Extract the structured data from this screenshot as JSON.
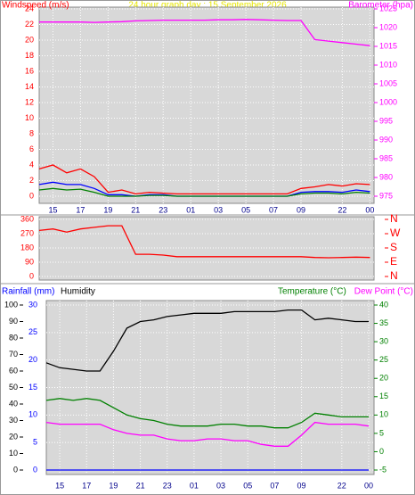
{
  "chart_data": [
    {
      "type": "line",
      "title": "24 hour graph day : 15 September 2026",
      "x": [
        0,
        1,
        2,
        3,
        4,
        5,
        6,
        7,
        8,
        9,
        10,
        11,
        12,
        13,
        14,
        15,
        16,
        17,
        18,
        19,
        20,
        21,
        22,
        23,
        24
      ],
      "xlim": [
        0,
        24.3
      ],
      "xticks": [
        {
          "value": 1,
          "label": "15"
        },
        {
          "value": 3,
          "label": "17"
        },
        {
          "value": 5,
          "label": "19"
        },
        {
          "value": 7,
          "label": "21"
        },
        {
          "value": 9,
          "label": "23"
        },
        {
          "value": 11,
          "label": "01"
        },
        {
          "value": 13,
          "label": "03"
        },
        {
          "value": 15,
          "label": "05"
        },
        {
          "value": 17,
          "label": "07"
        },
        {
          "value": 19,
          "label": "09"
        },
        {
          "value": 22,
          "label": "22"
        },
        {
          "value": 24,
          "label": "00"
        }
      ],
      "ylim": [
        0,
        24
      ],
      "yticks": [
        0,
        2,
        4,
        6,
        8,
        10,
        12,
        14,
        16,
        18,
        20,
        22,
        24
      ],
      "y2lim": [
        975,
        1025
      ],
      "y2ticks": [
        975,
        980,
        985,
        990,
        995,
        1000,
        1005,
        1010,
        1015,
        1020,
        1025
      ],
      "grid": true,
      "series": [
        {
          "name": "Windspeed (m/s)",
          "color": "#ff0000",
          "values": [
            3.5,
            4,
            3,
            3.5,
            2.5,
            0.5,
            0.8,
            0.3,
            0.5,
            0.4,
            0.3,
            0.3,
            0.3,
            0.3,
            0.3,
            0.3,
            0.3,
            0.3,
            0.3,
            1,
            1.2,
            1.5,
            1.3,
            1.6,
            1.5
          ]
        },
        {
          "color": "#0000ff",
          "values": [
            1.5,
            1.8,
            1.5,
            1.5,
            1,
            0.2,
            0.2,
            0,
            0.2,
            0.2,
            0,
            0,
            0,
            0,
            0,
            0,
            0,
            0,
            0,
            0.5,
            0.6,
            0.6,
            0.5,
            0.8,
            0.6
          ]
        },
        {
          "color": "#008000",
          "values": [
            0.8,
            1,
            0.8,
            0.9,
            0.5,
            0,
            0,
            0,
            0.1,
            0.1,
            0,
            0,
            0,
            0,
            0,
            0,
            0,
            0,
            0,
            0.3,
            0.4,
            0.4,
            0.3,
            0.5,
            0.4
          ]
        },
        {
          "name": "Barometer (hpa)",
          "color": "#ff00ff",
          "axis": "y2",
          "values": [
            1021.5,
            1021.5,
            1021.5,
            1021.5,
            1021.4,
            1021.5,
            1021.6,
            1021.8,
            1021.9,
            1022,
            1022,
            1022,
            1022,
            1022.1,
            1022.1,
            1022.2,
            1022.1,
            1022,
            1021.9,
            1021.9,
            1016.8,
            1016.4,
            1016,
            1015.6,
            1015.2
          ]
        }
      ]
    },
    {
      "type": "line",
      "x": [
        0,
        1,
        2,
        3,
        4,
        5,
        6,
        7,
        8,
        9,
        10,
        11,
        12,
        13,
        14,
        15,
        16,
        17,
        18,
        19,
        20,
        21,
        22,
        23,
        24
      ],
      "xlim": [
        0,
        24.3
      ],
      "ylim": [
        0,
        360
      ],
      "yticks": [
        0,
        90,
        180,
        270,
        360
      ],
      "y2lim": [
        0,
        360
      ],
      "y2ticks": [
        {
          "value": 360,
          "label": "N"
        },
        {
          "value": 270,
          "label": "W"
        },
        {
          "value": 180,
          "label": "S"
        },
        {
          "value": 90,
          "label": "E"
        },
        {
          "value": 0,
          "label": "N"
        }
      ],
      "grid": true,
      "series": [
        {
          "color": "#ff0000",
          "values": [
            290,
            300,
            280,
            300,
            310,
            320,
            320,
            140,
            140,
            135,
            125,
            125,
            125,
            125,
            125,
            125,
            125,
            125,
            125,
            125,
            120,
            118,
            120,
            122,
            120
          ]
        }
      ]
    },
    {
      "type": "line",
      "x": [
        0,
        1,
        2,
        3,
        4,
        5,
        6,
        7,
        8,
        9,
        10,
        11,
        12,
        13,
        14,
        15,
        16,
        17,
        18,
        19,
        20,
        21,
        22,
        23,
        24
      ],
      "xlim": [
        0,
        24.4
      ],
      "xticks": [
        {
          "value": 1,
          "label": "15"
        },
        {
          "value": 3,
          "label": "17"
        },
        {
          "value": 5,
          "label": "19"
        },
        {
          "value": 7,
          "label": "21"
        },
        {
          "value": 9,
          "label": "23"
        },
        {
          "value": 11,
          "label": "01"
        },
        {
          "value": 13,
          "label": "03"
        },
        {
          "value": 15,
          "label": "05"
        },
        {
          "value": 17,
          "label": "07"
        },
        {
          "value": 19,
          "label": "09"
        },
        {
          "value": 22,
          "label": "22"
        },
        {
          "value": 24,
          "label": "00"
        }
      ],
      "ylim": [
        0,
        30
      ],
      "yticks": [
        0,
        5,
        10,
        15,
        20,
        25,
        30
      ],
      "y3lim": [
        0,
        100
      ],
      "y3ticks": [
        0,
        10,
        20,
        30,
        40,
        50,
        60,
        70,
        80,
        90,
        100
      ],
      "y2lim": [
        -5,
        40
      ],
      "y2ticks": [
        -5,
        0,
        5,
        10,
        15,
        20,
        25,
        30,
        35,
        40
      ],
      "grid": true,
      "series": [
        {
          "name": "Rainfall (mm)",
          "color": "#0000ff",
          "values": [
            0,
            0,
            0,
            0,
            0,
            0,
            0,
            0,
            0,
            0,
            0,
            0,
            0,
            0,
            0,
            0,
            0,
            0,
            0,
            0,
            0,
            0,
            0,
            0,
            0
          ]
        },
        {
          "name": "Humidity",
          "color": "#000000",
          "axis": "y3",
          "values": [
            65,
            62,
            61,
            60,
            60,
            72,
            86,
            90,
            91,
            93,
            94,
            95,
            95,
            95,
            96,
            96,
            96,
            96,
            97,
            97,
            91,
            92,
            91,
            90,
            90
          ]
        },
        {
          "name": "Temperature (°C)",
          "color": "#008000",
          "axis": "y2",
          "values": [
            14,
            14.5,
            14,
            14.5,
            14,
            12,
            10,
            9,
            8.5,
            7.5,
            7,
            7,
            7,
            7.5,
            7.5,
            7,
            7,
            6.5,
            6.5,
            8,
            10.5,
            10,
            9.5,
            9.5,
            9.5
          ]
        },
        {
          "name": "Dew Point (°C)",
          "color": "#ff00ff",
          "axis": "y2",
          "values": [
            8,
            7.5,
            7.5,
            7.5,
            7.5,
            6,
            5,
            4.5,
            4.5,
            3.5,
            3,
            3,
            3.5,
            3.5,
            3,
            3,
            2,
            1.5,
            1.5,
            4.5,
            8,
            7.5,
            7.5,
            7.5,
            7
          ]
        }
      ]
    }
  ]
}
